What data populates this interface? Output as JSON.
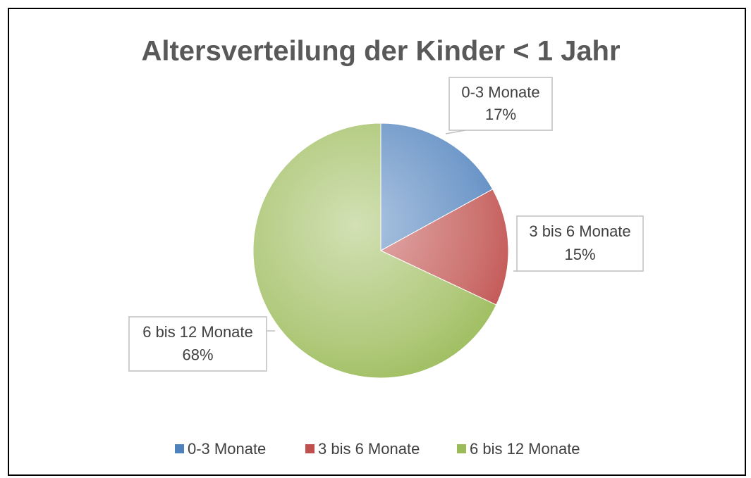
{
  "chart_data": {
    "type": "pie",
    "title": "Altersverteilung der Kinder < 1 Jahr",
    "categories": [
      "0-3 Monate",
      "3 bis 6 Monate",
      "6 bis 12 Monate"
    ],
    "values": [
      17,
      15,
      68
    ],
    "value_labels": [
      "17%",
      "15%",
      "68%"
    ],
    "colors": [
      "#4f81bd",
      "#c0504d",
      "#9bbb59"
    ],
    "legend": "bottom"
  }
}
